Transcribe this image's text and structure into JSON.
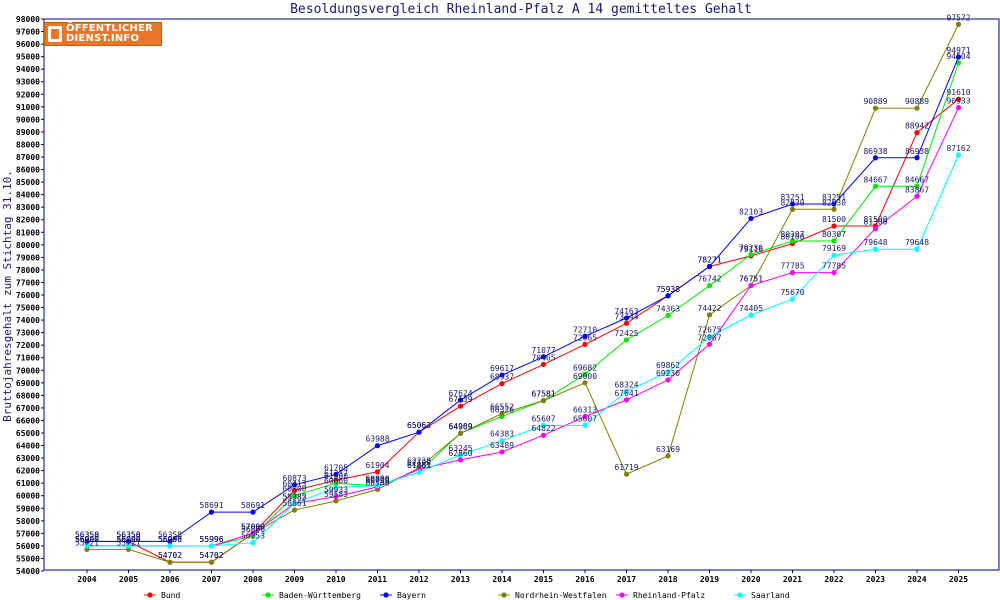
{
  "logo": {
    "line1": "ÖFFENTLICHER",
    "line2": "DIENST.INFO"
  },
  "colors": {
    "Bund": "#ff0000",
    "Baden-Württemberg": "#00e600",
    "Bayern": "#0000ff",
    "Nordrhein-Westfalen": "#808000",
    "Rheinland-Pfalz": "#ff00ff",
    "Saarland": "#00ffff"
  },
  "chart_data": {
    "type": "line",
    "title": "Besoldungsvergleich Rheinland-Pfalz A 14 gemitteltes Gehalt",
    "ylabel": "Bruttojahresgehalt zum Stichtag 31.10.",
    "xlabel": "",
    "ylim": [
      54000,
      98000
    ],
    "ytick_step": 1000,
    "grid": false,
    "legend": "bottom",
    "x": [
      2004,
      2005,
      2006,
      2007,
      2008,
      2009,
      2010,
      2011,
      2012,
      2013,
      2014,
      2015,
      2016,
      2017,
      2018,
      2019,
      2020,
      2021,
      2022,
      2023,
      2024,
      2025
    ],
    "series": [
      {
        "name": "Bund",
        "values": [
          56350,
          56350,
          54702,
          54702,
          57000,
          60413,
          61237,
          61904,
          65063,
          67139,
          68937,
          70465,
          72065,
          73744,
          75938,
          78271,
          79116,
          80100,
          81500,
          81500,
          88942,
          91610
        ]
      },
      {
        "name": "Baden-Württemberg",
        "values": [
          56000,
          56000,
          55996,
          55996,
          56800,
          60000,
          61000,
          60800,
          61881,
          64989,
          66326,
          67581,
          69682,
          72425,
          74363,
          76742,
          79236,
          80307,
          80307,
          84667,
          84667,
          94504
        ]
      },
      {
        "name": "Bayern",
        "values": [
          56358,
          56358,
          56358,
          58691,
          58691,
          60873,
          61705,
          63988,
          65063,
          67624,
          69617,
          71077,
          72710,
          74163,
          75938,
          78271,
          82103,
          83251,
          83251,
          86938,
          86938,
          94971
        ]
      },
      {
        "name": "Nordrhein-Westfalen",
        "values": [
          55721,
          55721,
          54702,
          54702,
          57000,
          58861,
          59583,
          60500,
          62238,
          64969,
          66552,
          67581,
          69000,
          61719,
          63169,
          74422,
          76751,
          82830,
          82830,
          90889,
          90889,
          97572
        ]
      },
      {
        "name": "Rheinland-Pfalz",
        "values": [
          56000,
          56000,
          56000,
          55996,
          57000,
          59382,
          59933,
          60700,
          62100,
          62860,
          63489,
          64822,
          66313,
          67641,
          69230,
          72067,
          76751,
          77785,
          77785,
          81300,
          83867,
          90933
        ]
      },
      {
        "name": "Saarland",
        "values": [
          56000,
          56000,
          56000,
          55996,
          56253,
          59385,
          60660,
          60800,
          61881,
          63245,
          64383,
          65607,
          65607,
          68324,
          69862,
          72675,
          74405,
          75670,
          79169,
          79648,
          79648,
          87162
        ]
      }
    ]
  }
}
